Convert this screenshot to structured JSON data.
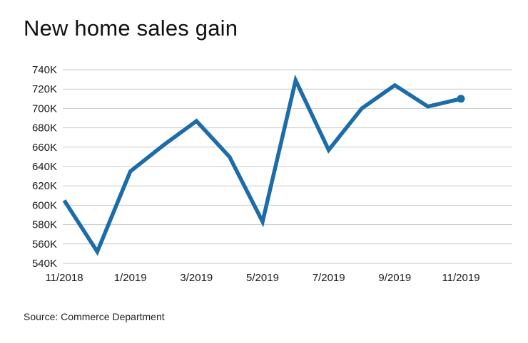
{
  "chart_data": {
    "type": "line",
    "title": "New home sales gain",
    "source": "Source: Commerce Department",
    "x": [
      "11/2018",
      "12/2018",
      "1/2019",
      "2/2019",
      "3/2019",
      "4/2019",
      "5/2019",
      "6/2019",
      "7/2019",
      "8/2019",
      "9/2019",
      "10/2019",
      "11/2019"
    ],
    "values": [
      605,
      552,
      635,
      662,
      687,
      650,
      583,
      729,
      657,
      700,
      724,
      702,
      710
    ],
    "unit": "K",
    "ylim": [
      540,
      740
    ],
    "ytick_step": 20,
    "ytick_labels": [
      "740K",
      "720K",
      "700K",
      "680K",
      "660K",
      "640K",
      "620K",
      "600K",
      "580K",
      "560K",
      "540K"
    ],
    "xtick_indices": [
      0,
      2,
      4,
      6,
      8,
      10,
      12
    ],
    "xtick_labels": [
      "11/2018",
      "1/2019",
      "3/2019",
      "5/2019",
      "7/2019",
      "9/2019",
      "11/2019"
    ],
    "grid": true,
    "legend": "none",
    "line_color": "#1b6ca8",
    "grid_color": "#c9c9c9",
    "end_marker": true
  }
}
